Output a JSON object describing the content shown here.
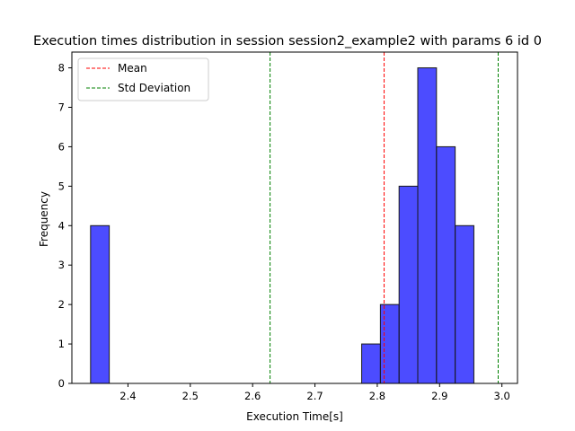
{
  "chart_data": {
    "type": "bar",
    "title": "Execution times distribution in session session2_example2 with params 6 id 0",
    "xlabel": "Execution Time[s]",
    "ylabel": "Frequency",
    "xlim": [
      2.31,
      3.025
    ],
    "ylim": [
      0,
      8.4
    ],
    "xticks": [
      2.4,
      2.5,
      2.6,
      2.7,
      2.8,
      2.9,
      3.0
    ],
    "xtick_labels": [
      "2.4",
      "2.5",
      "2.6",
      "2.7",
      "2.8",
      "2.9",
      "3.0"
    ],
    "yticks": [
      0,
      1,
      2,
      3,
      4,
      5,
      6,
      7,
      8
    ],
    "ytick_labels": [
      "0",
      "1",
      "2",
      "3",
      "4",
      "5",
      "6",
      "7",
      "8"
    ],
    "bar_color": "#0000ff",
    "bar_edge_color": "#1a1a1a",
    "bins": [
      {
        "x0": 2.34,
        "x1": 2.37,
        "count": 4
      },
      {
        "x0": 2.775,
        "x1": 2.805,
        "count": 1
      },
      {
        "x0": 2.805,
        "x1": 2.835,
        "count": 2
      },
      {
        "x0": 2.835,
        "x1": 2.865,
        "count": 5
      },
      {
        "x0": 2.865,
        "x1": 2.895,
        "count": 8
      },
      {
        "x0": 2.895,
        "x1": 2.925,
        "count": 6
      },
      {
        "x0": 2.925,
        "x1": 2.955,
        "count": 4
      }
    ],
    "lines": [
      {
        "label": "Mean",
        "x": 2.811,
        "color": "#ff0000"
      },
      {
        "label": "Std Deviation",
        "x": 2.628,
        "color": "#008000"
      },
      {
        "label": "",
        "x": 2.994,
        "color": "#008000"
      }
    ],
    "legend": {
      "position": "top-left",
      "entries": [
        {
          "label": "Mean",
          "color": "#ff0000"
        },
        {
          "label": "Std Deviation",
          "color": "#008000"
        }
      ]
    },
    "grid": false
  }
}
